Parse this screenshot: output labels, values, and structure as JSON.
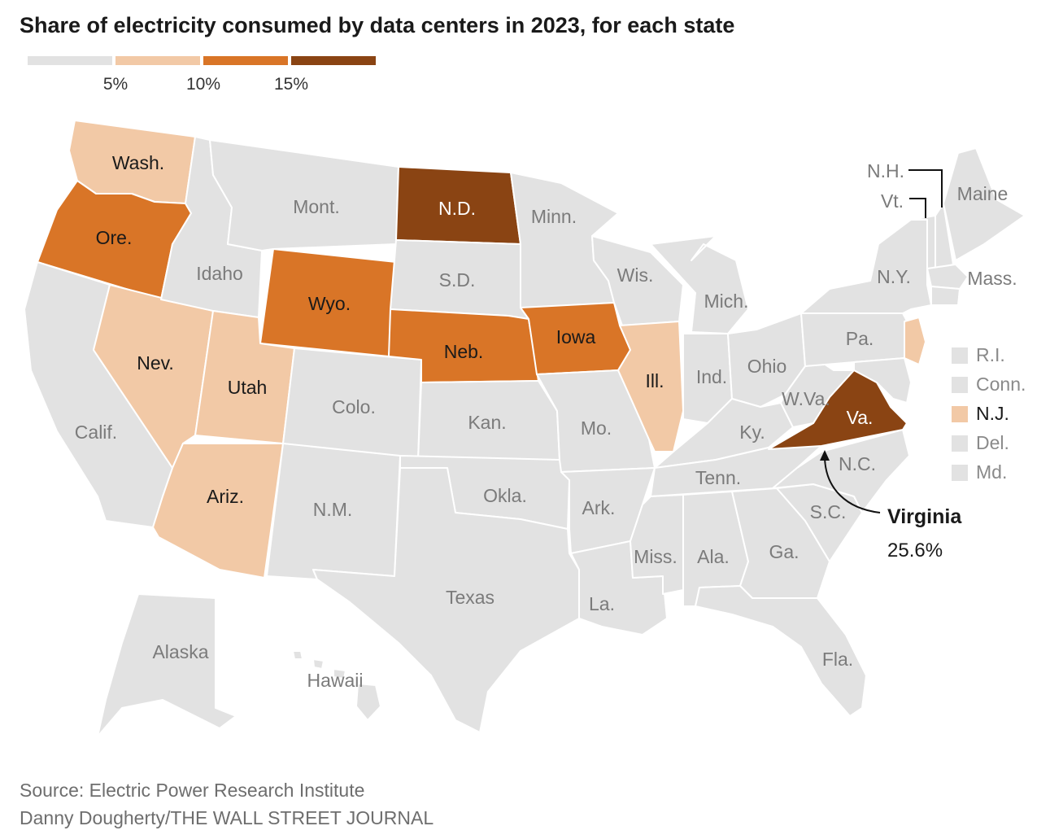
{
  "title": "Share of electricity consumed by data centers in 2023, for each state",
  "source_line": "Source: Electric Power Research Institute",
  "credit_line": "Danny Dougherty/THE WALL STREET JOURNAL",
  "legend": {
    "ticks": [
      "5%",
      "10%",
      "15%"
    ],
    "colors": [
      "#e2e2e2",
      "#f2c9a6",
      "#d97527",
      "#8a4413"
    ]
  },
  "colors": {
    "bin0": "#e2e2e2",
    "bin1": "#f2c9a6",
    "bin2": "#d97527",
    "bin3": "#8a4413",
    "label_light": "#7b7b7b",
    "label_dark": "#1a1a1a",
    "label_on_dark": "#ffffff"
  },
  "states": {
    "WA": {
      "label": "Wash.",
      "bin": 1
    },
    "OR": {
      "label": "Ore.",
      "bin": 2
    },
    "CA": {
      "label": "Calif.",
      "bin": 0
    },
    "NV": {
      "label": "Nev.",
      "bin": 1
    },
    "ID": {
      "label": "Idaho",
      "bin": 0
    },
    "MT": {
      "label": "Mont.",
      "bin": 0
    },
    "WY": {
      "label": "Wyo.",
      "bin": 2
    },
    "UT": {
      "label": "Utah",
      "bin": 1
    },
    "AZ": {
      "label": "Ariz.",
      "bin": 1
    },
    "CO": {
      "label": "Colo.",
      "bin": 0
    },
    "NM": {
      "label": "N.M.",
      "bin": 0
    },
    "ND": {
      "label": "N.D.",
      "bin": 3
    },
    "SD": {
      "label": "S.D.",
      "bin": 0
    },
    "NE": {
      "label": "Neb.",
      "bin": 2
    },
    "KS": {
      "label": "Kan.",
      "bin": 0
    },
    "OK": {
      "label": "Okla.",
      "bin": 0
    },
    "TX": {
      "label": "Texas",
      "bin": 0
    },
    "MN": {
      "label": "Minn.",
      "bin": 0
    },
    "IA": {
      "label": "Iowa",
      "bin": 2
    },
    "MO": {
      "label": "Mo.",
      "bin": 0
    },
    "AR": {
      "label": "Ark.",
      "bin": 0
    },
    "LA": {
      "label": "La.",
      "bin": 0
    },
    "WI": {
      "label": "Wis.",
      "bin": 0
    },
    "IL": {
      "label": "Ill.",
      "bin": 1
    },
    "MI": {
      "label": "Mich.",
      "bin": 0
    },
    "IN": {
      "label": "Ind.",
      "bin": 0
    },
    "OH": {
      "label": "Ohio",
      "bin": 0
    },
    "KY": {
      "label": "Ky.",
      "bin": 0
    },
    "TN": {
      "label": "Tenn.",
      "bin": 0
    },
    "MS": {
      "label": "Miss.",
      "bin": 0
    },
    "AL": {
      "label": "Ala.",
      "bin": 0
    },
    "GA": {
      "label": "Ga.",
      "bin": 0
    },
    "FL": {
      "label": "Fla.",
      "bin": 0
    },
    "SC": {
      "label": "S.C.",
      "bin": 0
    },
    "NC": {
      "label": "N.C.",
      "bin": 0
    },
    "VA": {
      "label": "Va.",
      "bin": 3
    },
    "WV": {
      "label": "W.Va.",
      "bin": 0
    },
    "PA": {
      "label": "Pa.",
      "bin": 0
    },
    "NY": {
      "label": "N.Y.",
      "bin": 0
    },
    "VT": {
      "label": "Vt.",
      "bin": 0
    },
    "NH": {
      "label": "N.H.",
      "bin": 0
    },
    "ME": {
      "label": "Maine",
      "bin": 0
    },
    "MA": {
      "label": "Mass.",
      "bin": 0
    },
    "AK": {
      "label": "Alaska",
      "bin": 0
    },
    "HI": {
      "label": "Hawaii",
      "bin": 0
    }
  },
  "small_states": [
    {
      "label": "R.I.",
      "bin": 0
    },
    {
      "label": "Conn.",
      "bin": 0
    },
    {
      "label": "N.J.",
      "bin": 1
    },
    {
      "label": "Del.",
      "bin": 0
    },
    {
      "label": "Md.",
      "bin": 0
    }
  ],
  "callout": {
    "name": "Virginia",
    "value": "25.6%"
  }
}
